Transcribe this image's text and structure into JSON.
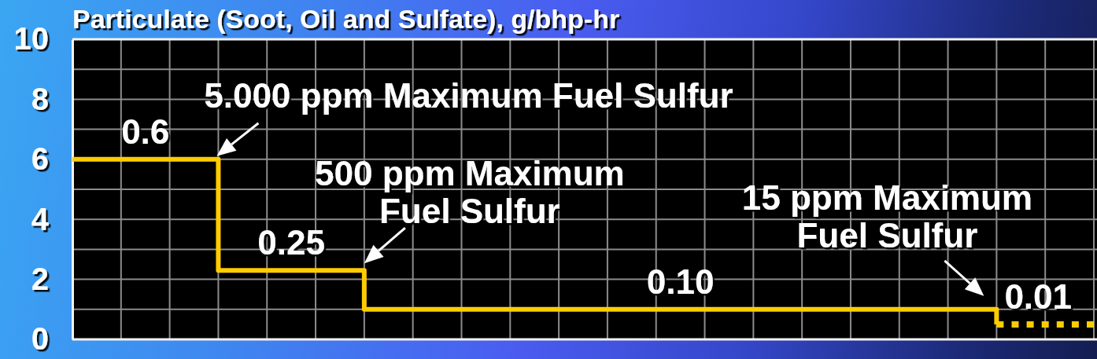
{
  "chart_data": {
    "type": "step",
    "title": "Particulate (Soot, Oil and Sulfate), g/bhp-hr",
    "categories": [
      null,
      null,
      null,
      null,
      null,
      null,
      null,
      null,
      null,
      null,
      null,
      null,
      null,
      null,
      null,
      null,
      null,
      null,
      null,
      null,
      null,
      null
    ],
    "series": [
      {
        "color": "#ffcc00",
        "values": [
          6,
          6,
          6,
          2.3,
          2.3,
          2.3,
          1,
          1,
          1,
          1,
          1,
          1,
          1,
          1,
          1,
          1,
          1,
          1,
          1,
          0.5,
          null,
          null
        ]
      },
      {
        "color": "#ffcc00",
        "line_style": "dotted",
        "values": [
          null,
          null,
          null,
          null,
          null,
          null,
          null,
          null,
          null,
          null,
          null,
          null,
          null,
          null,
          null,
          null,
          null,
          null,
          null,
          0.5,
          0.5,
          0.5
        ]
      }
    ],
    "ylim": [
      0,
      10
    ],
    "yticks": [
      0,
      {
        "value": 1,
        "label": null
      },
      2,
      {
        "value": 3,
        "label": null
      },
      4,
      {
        "value": 5,
        "label": null
      },
      6,
      {
        "value": 7,
        "label": null
      },
      8,
      {
        "value": 9,
        "label": null
      },
      10
    ],
    "grid": true,
    "line_style": "solid",
    "tick_labels": "y",
    "annotations": [
      "0.6",
      "5.000 ppm Maximum Fuel Sulfur",
      "0.25",
      "500 ppm Maximum Fuel Sulfur",
      "0.10",
      "15 ppm Maximum Fuel Sulfur",
      "0.01"
    ]
  }
}
